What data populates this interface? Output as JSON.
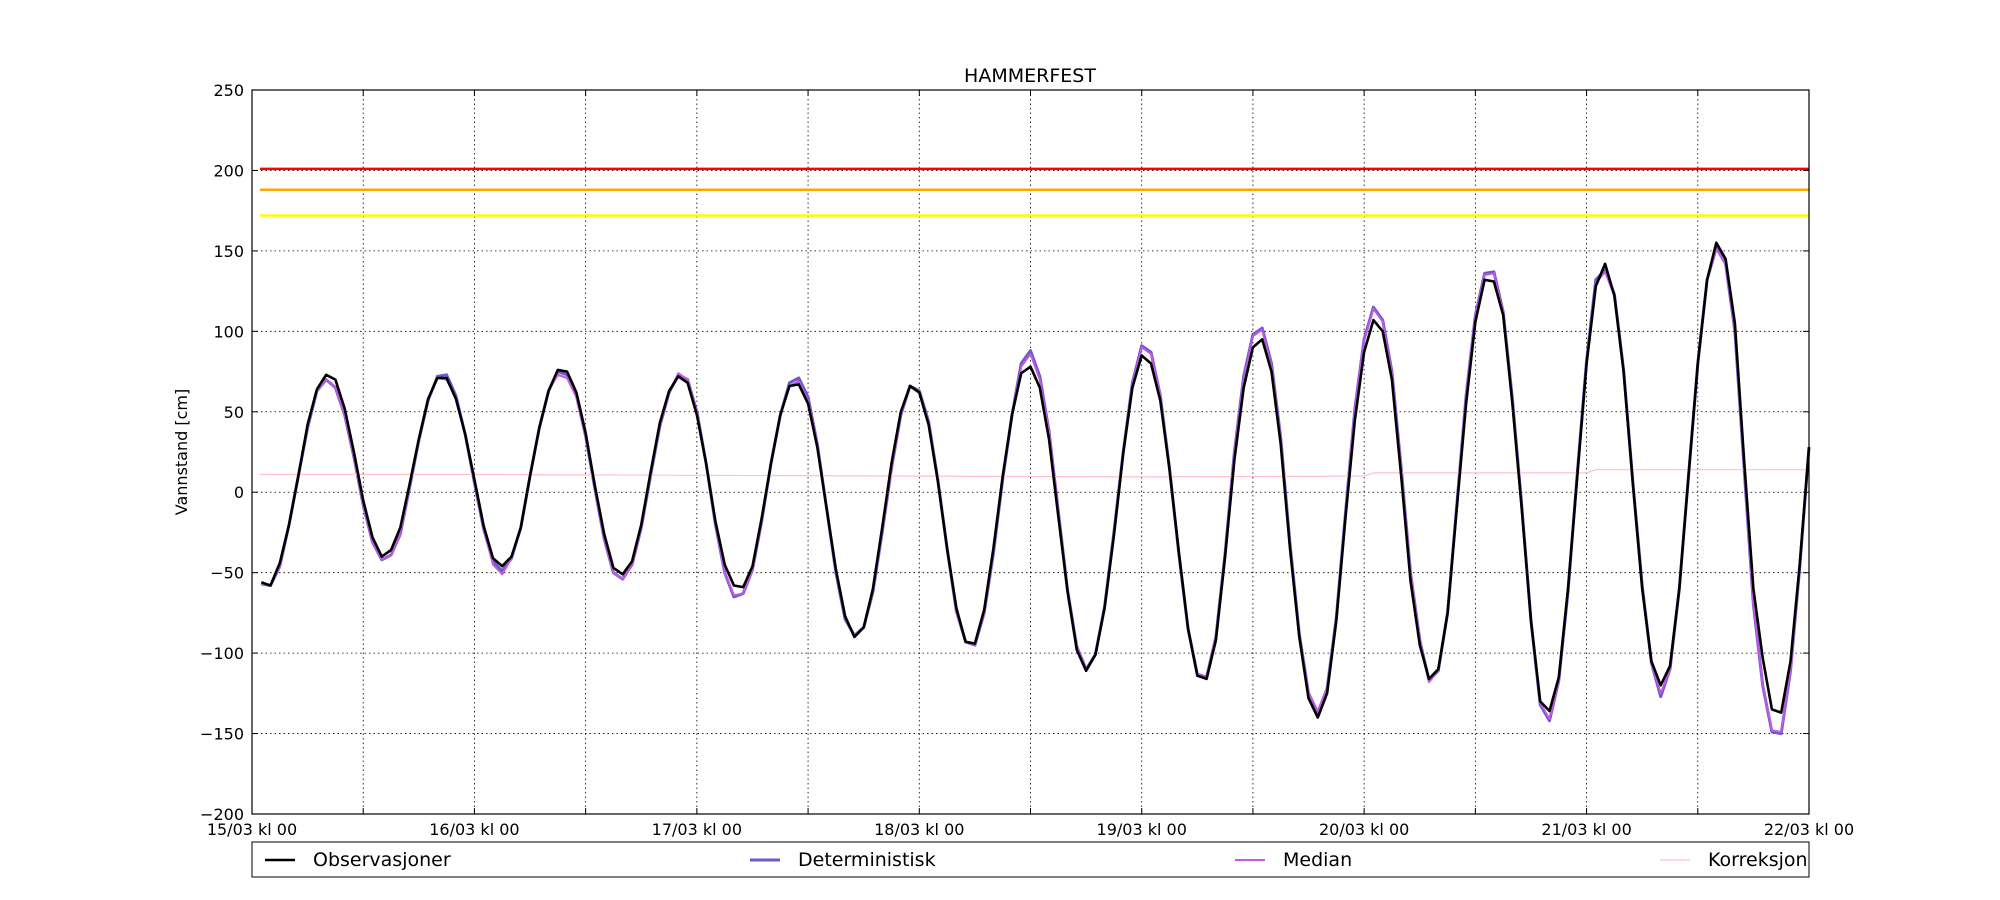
{
  "chart_data": {
    "type": "line",
    "title": "HAMMERFEST",
    "ylabel": "Vannstand [cm]",
    "xlabel": "",
    "ylim": [
      -200,
      250
    ],
    "yticks": [
      -200,
      -150,
      -100,
      -50,
      0,
      50,
      100,
      150,
      200,
      250
    ],
    "xlim": [
      0,
      168
    ],
    "xticks": [
      {
        "hour": 0,
        "label": "15/03 kl 00"
      },
      {
        "hour": 12,
        "label": ""
      },
      {
        "hour": 24,
        "label": "16/03 kl 00"
      },
      {
        "hour": 36,
        "label": ""
      },
      {
        "hour": 48,
        "label": "17/03 kl 00"
      },
      {
        "hour": 60,
        "label": ""
      },
      {
        "hour": 72,
        "label": "18/03 kl 00"
      },
      {
        "hour": 84,
        "label": ""
      },
      {
        "hour": 96,
        "label": "19/03 kl 00"
      },
      {
        "hour": 108,
        "label": ""
      },
      {
        "hour": 120,
        "label": "20/03 kl 00"
      },
      {
        "hour": 132,
        "label": ""
      },
      {
        "hour": 144,
        "label": "21/03 kl 00"
      },
      {
        "hour": 156,
        "label": ""
      },
      {
        "hour": 168,
        "label": "22/03 kl 00"
      }
    ],
    "grid": true,
    "legend_position": "bottom",
    "thresholds": [
      {
        "value": 201,
        "color": "#ff0000"
      },
      {
        "value": 188,
        "color": "#ffa500"
      },
      {
        "value": 172,
        "color": "#ffff00"
      }
    ],
    "series": [
      {
        "name": "Observasjoner",
        "color": "#000000",
        "step_hours": 1,
        "start_hour": 1,
        "values": [
          -56,
          -58,
          -44,
          -20,
          10,
          42,
          64,
          73,
          70,
          52,
          25,
          -5,
          -28,
          -40,
          -36,
          -22,
          5,
          33,
          58,
          71,
          71,
          58,
          36,
          8,
          -21,
          -41,
          -46,
          -40,
          -22,
          10,
          40,
          63,
          76,
          75,
          62,
          37,
          4,
          -26,
          -47,
          -51,
          -43,
          -20,
          12,
          43,
          63,
          72,
          68,
          48,
          18,
          -18,
          -45,
          -58,
          -59,
          -46,
          -16,
          18,
          48,
          66,
          67,
          55,
          28,
          -10,
          -48,
          -77,
          -90,
          -84,
          -60,
          -22,
          18,
          50,
          66,
          62,
          42,
          7,
          -35,
          -72,
          -93,
          -94,
          -73,
          -35,
          10,
          48,
          74,
          78,
          65,
          33,
          -15,
          -62,
          -98,
          -111,
          -101,
          -72,
          -27,
          24,
          65,
          85,
          80,
          57,
          14,
          -37,
          -85,
          -114,
          -116,
          -92,
          -40,
          20,
          65,
          90,
          95,
          75,
          30,
          -35,
          -90,
          -128,
          -140,
          -125,
          -80,
          -15,
          45,
          87,
          107,
          100,
          70,
          10,
          -55,
          -95,
          -116,
          -110,
          -75,
          -10,
          55,
          106,
          132,
          131,
          110,
          55,
          -10,
          -80,
          -130,
          -136,
          -115,
          -60,
          10,
          80,
          128,
          142,
          122,
          75,
          5,
          -60,
          -105,
          -120,
          -108,
          -60,
          10,
          80,
          132,
          155,
          145,
          105,
          20,
          -60,
          -103,
          -135,
          -137,
          -105,
          -45,
          28
        ]
      },
      {
        "name": "Deterministisk",
        "color": "#6a5acd",
        "step_hours": 1,
        "start_hour": 1,
        "values": [
          -57,
          -58,
          -46,
          -20,
          10,
          40,
          63,
          70,
          65,
          48,
          22,
          -8,
          -31,
          -42,
          -39,
          -26,
          3,
          32,
          57,
          72,
          73,
          60,
          36,
          6,
          -23,
          -43,
          -49,
          -41,
          -22,
          10,
          40,
          63,
          75,
          73,
          60,
          35,
          2,
          -29,
          -50,
          -54,
          -45,
          -22,
          10,
          41,
          62,
          73,
          70,
          50,
          18,
          -20,
          -50,
          -65,
          -63,
          -48,
          -18,
          18,
          48,
          68,
          71,
          59,
          30,
          -10,
          -50,
          -79,
          -89,
          -84,
          -62,
          -25,
          15,
          48,
          66,
          63,
          44,
          8,
          -35,
          -74,
          -93,
          -95,
          -75,
          -38,
          8,
          48,
          80,
          88,
          72,
          38,
          -12,
          -61,
          -96,
          -110,
          -101,
          -71,
          -25,
          25,
          68,
          91,
          87,
          60,
          15,
          -38,
          -85,
          -113,
          -115,
          -90,
          -38,
          25,
          72,
          98,
          102,
          80,
          34,
          -32,
          -88,
          -125,
          -137,
          -122,
          -78,
          -12,
          52,
          95,
          115,
          107,
          75,
          15,
          -50,
          -92,
          -117,
          -111,
          -75,
          -8,
          60,
          110,
          136,
          137,
          112,
          58,
          -8,
          -80,
          -132,
          -142,
          -117,
          -62,
          12,
          82,
          132,
          138,
          123,
          76,
          6,
          -58,
          -106,
          -127,
          -110,
          -60,
          10,
          80,
          132,
          152,
          142,
          100,
          15,
          -70,
          -120,
          -149,
          -150,
          -111,
          -47,
          28
        ]
      },
      {
        "name": "Median",
        "color": "#c05ae0",
        "step_hours": 1,
        "start_hour": 1,
        "values": [
          -57,
          -58,
          -46,
          -20,
          10,
          40,
          63,
          70,
          65,
          48,
          22,
          -8,
          -31,
          -42,
          -39,
          -26,
          3,
          32,
          57,
          71,
          70,
          58,
          36,
          6,
          -23,
          -45,
          -51,
          -41,
          -22,
          10,
          40,
          63,
          73,
          71,
          59,
          35,
          2,
          -29,
          -50,
          -54,
          -45,
          -22,
          10,
          41,
          62,
          74,
          70,
          50,
          18,
          -20,
          -50,
          -64,
          -63,
          -48,
          -18,
          18,
          48,
          66,
          69,
          57,
          30,
          -10,
          -50,
          -78,
          -89,
          -84,
          -62,
          -25,
          15,
          48,
          66,
          62,
          44,
          8,
          -35,
          -74,
          -93,
          -95,
          -75,
          -38,
          8,
          48,
          78,
          86,
          70,
          38,
          -12,
          -61,
          -96,
          -110,
          -101,
          -71,
          -25,
          25,
          67,
          90,
          86,
          60,
          15,
          -38,
          -85,
          -113,
          -115,
          -90,
          -38,
          25,
          70,
          97,
          101,
          78,
          34,
          -32,
          -88,
          -125,
          -136,
          -122,
          -78,
          -12,
          52,
          94,
          114,
          106,
          74,
          15,
          -50,
          -92,
          -118,
          -111,
          -75,
          -8,
          60,
          110,
          135,
          136,
          112,
          58,
          -8,
          -80,
          -131,
          -141,
          -117,
          -62,
          12,
          82,
          130,
          137,
          122,
          75,
          6,
          -58,
          -106,
          -125,
          -110,
          -60,
          10,
          80,
          132,
          151,
          142,
          100,
          15,
          -70,
          -120,
          -148,
          -149,
          -111,
          -47,
          28
        ]
      },
      {
        "name": "Korreksjon",
        "color": "#ffc0cb",
        "points": [
          [
            0,
            11
          ],
          [
            24,
            11
          ],
          [
            48,
            10.5
          ],
          [
            72,
            10
          ],
          [
            96,
            9.5
          ],
          [
            120,
            10
          ],
          [
            121,
            12
          ],
          [
            144,
            12
          ],
          [
            145,
            14
          ],
          [
            168,
            14
          ]
        ]
      }
    ]
  }
}
